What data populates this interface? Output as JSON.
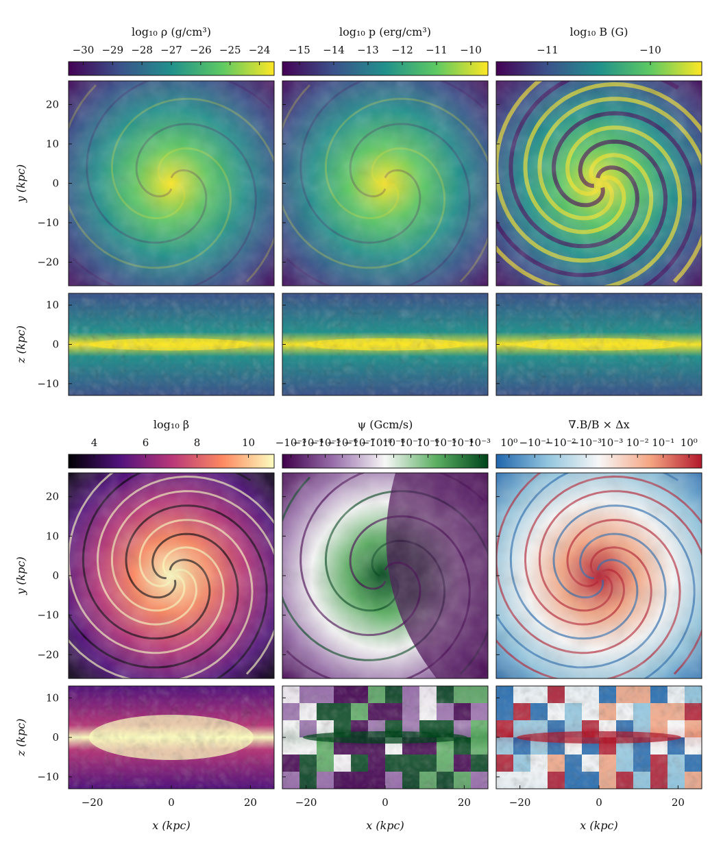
{
  "figure": {
    "colorbars": [
      {
        "id": "rho",
        "title": "log₁₀ ρ (g/cm³)",
        "ticks": [
          "−30",
          "−29",
          "−28",
          "−27",
          "−26",
          "−25",
          "−24"
        ],
        "colormap": [
          "#440154",
          "#3b528b",
          "#21918c",
          "#5ec962",
          "#fde725"
        ]
      },
      {
        "id": "p",
        "title": "log₁₀ p (erg/cm³)",
        "ticks": [
          "−15",
          "−14",
          "−13",
          "−12",
          "−11",
          "−10"
        ],
        "colormap": [
          "#440154",
          "#3b528b",
          "#21918c",
          "#5ec962",
          "#fde725"
        ]
      },
      {
        "id": "B",
        "title": "log₁₀ B (G)",
        "ticks": [
          "−11",
          "−10"
        ],
        "colormap": [
          "#440154",
          "#3b528b",
          "#21918c",
          "#5ec962",
          "#fde725"
        ]
      },
      {
        "id": "beta",
        "title": "log₁₀ β",
        "ticks": [
          "4",
          "6",
          "8",
          "10"
        ],
        "colormap": [
          "#000004",
          "#51127c",
          "#b73779",
          "#fc8961",
          "#fcfdbf"
        ]
      },
      {
        "id": "psi",
        "title": "ψ (Gcm/s)",
        "ticks": [
          "−10⁻³",
          "−10⁻⁴",
          "−10⁻⁵",
          "−10⁻⁶",
          "−10⁻⁷",
          "−10⁻⁸",
          "10⁻⁸",
          "10⁻⁷",
          "10⁻⁶",
          "10⁻⁵",
          "10⁻⁴",
          "10⁻³"
        ],
        "colormap": [
          "#40004b",
          "#9970ab",
          "#f7f7f7",
          "#5aae61",
          "#00441b"
        ]
      },
      {
        "id": "divB",
        "title": "∇.B/B × Δx",
        "ticks": [
          "10⁰",
          "−10⁻¹",
          "−10⁻²",
          "−10⁻³",
          "10⁻³",
          "10⁻²",
          "10⁻¹",
          "10⁰"
        ],
        "colormap": [
          "#2166ac",
          "#92c5de",
          "#f7f7f7",
          "#f4a582",
          "#b2182b"
        ]
      }
    ],
    "axes": {
      "x_label": "x (kpc)",
      "y_label": "y (kpc)",
      "z_label": "z (kpc)",
      "x_ticks": [
        "−20",
        "0",
        "20"
      ],
      "y_ticks": [
        "20",
        "10",
        "0",
        "−10",
        "−20"
      ],
      "z_ticks": [
        "10",
        "0",
        "−10"
      ]
    }
  },
  "chart_data": {
    "type": "heatmap",
    "panels": [
      {
        "quantity": "log10 rho",
        "projection": "face-on",
        "colorbar_range": [
          -30,
          -23.5
        ]
      },
      {
        "quantity": "log10 p",
        "projection": "face-on",
        "colorbar_range": [
          -15,
          -9.5
        ]
      },
      {
        "quantity": "log10 B",
        "projection": "face-on",
        "colorbar_range": [
          -11.5,
          -9.2
        ]
      },
      {
        "quantity": "log10 beta",
        "projection": "face-on",
        "colorbar_range": [
          3.5,
          11.8
        ]
      },
      {
        "quantity": "psi",
        "projection": "face-on",
        "scale": "symlog"
      },
      {
        "quantity": "divB/B*dx",
        "projection": "face-on",
        "scale": "symlog"
      }
    ],
    "x_range_kpc": [
      -26,
      26
    ],
    "y_range_kpc": [
      -26,
      26
    ],
    "z_range_kpc": [
      -13,
      13
    ]
  }
}
